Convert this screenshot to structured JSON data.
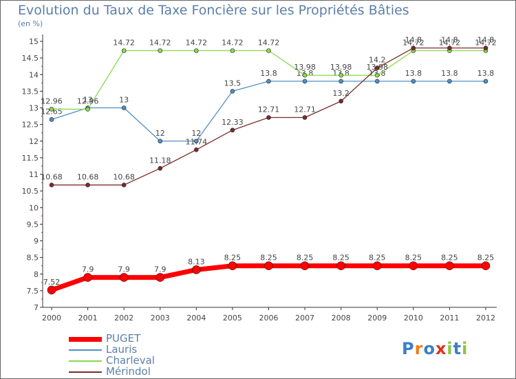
{
  "chart_data": {
    "type": "line",
    "title": "Evolution du Taux de Taxe Foncière sur les Propriétés Bâties",
    "subtitle": "(en %)",
    "xlabel": "",
    "ylabel": "",
    "x": [
      "2000",
      "2001",
      "2002",
      "2003",
      "2004",
      "2005",
      "2006",
      "2007",
      "2008",
      "2009",
      "2010",
      "2011",
      "2012"
    ],
    "ylim": [
      7,
      15
    ],
    "yticks": [
      "7",
      "7.5",
      "8",
      "8.5",
      "9",
      "9.5",
      "10",
      "10.5",
      "11",
      "11.5",
      "12",
      "12.5",
      "13",
      "13.5",
      "14",
      "14.5",
      "15"
    ],
    "grid": false,
    "legend_position": "bottom-left",
    "series": [
      {
        "name": "PUGET",
        "color": "#ff0000",
        "values": [
          7.52,
          7.9,
          7.9,
          7.9,
          8.13,
          8.25,
          8.25,
          8.25,
          8.25,
          8.25,
          8.25,
          8.25,
          8.25
        ],
        "labels": [
          "7.52",
          "7.9",
          "7.9",
          "7.9",
          "8.13",
          "8.25",
          "8.25",
          "8.25",
          "8.25",
          "8.25",
          "8.25",
          "8.25",
          "8.25"
        ]
      },
      {
        "name": "Lauris",
        "color": "#4f8fc4",
        "values": [
          12.65,
          13,
          13,
          12,
          12,
          13.5,
          13.8,
          13.8,
          13.8,
          13.8,
          13.8,
          13.8,
          13.8
        ],
        "labels": [
          "12.65",
          "13",
          "13",
          "12",
          "12",
          "13.5",
          "13.8",
          "13.8",
          "13.8",
          "13.8",
          "13.8",
          "13.8",
          "13.8"
        ]
      },
      {
        "name": "Charleval",
        "color": "#88d84f",
        "values": [
          12.96,
          12.96,
          14.72,
          14.72,
          14.72,
          14.72,
          14.72,
          13.98,
          13.98,
          13.98,
          14.72,
          14.72,
          14.72
        ],
        "labels": [
          "12.96",
          "12.96",
          "14.72",
          "14.72",
          "14.72",
          "14.72",
          "14.72",
          "13.98",
          "13.98",
          "13.98",
          "14.72",
          "14.72",
          "14.72"
        ]
      },
      {
        "name": "Mérindol",
        "color": "#7a2b2b",
        "values": [
          10.68,
          10.68,
          10.68,
          11.18,
          11.74,
          12.33,
          12.71,
          12.71,
          13.2,
          14.2,
          14.8,
          14.8,
          14.8
        ],
        "labels": [
          "10.68",
          "10.68",
          "10.68",
          "11.18",
          "11.74",
          "12.33",
          "12.71",
          "12.71",
          "13.2",
          "14.2",
          "14.8",
          "14.8",
          "14.8"
        ]
      }
    ]
  },
  "logo": {
    "letters": [
      "P",
      "r",
      "o",
      "x",
      "i",
      "t",
      "i"
    ],
    "colors": [
      "#3a7fc8",
      "#f07d1a",
      "#3a7fc8",
      "#e0301e",
      "#88c43f",
      "#3a7fc8",
      "#88c43f"
    ]
  }
}
